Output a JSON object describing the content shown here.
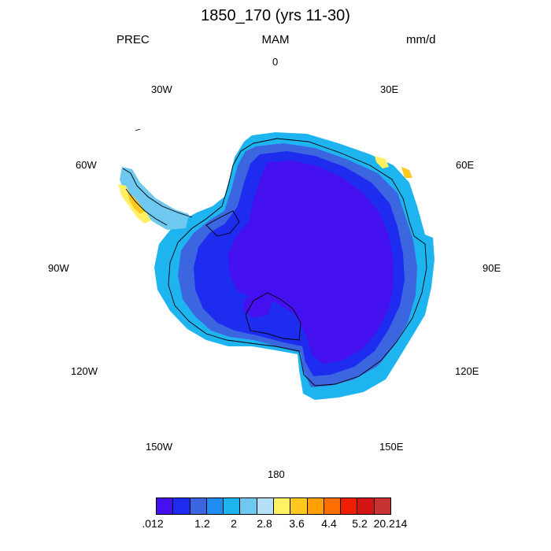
{
  "header": {
    "title": "1850_170 (yrs 11-30)",
    "variable": "PREC",
    "season": "MAM",
    "units": "mm/d"
  },
  "map": {
    "projection": "south-polar-stereographic",
    "region": "Antarctica",
    "longitude_labels": {
      "top": "0",
      "top_left": "30W",
      "top_right": "30E",
      "upper_left": "60W",
      "upper_right": "60E",
      "left": "90W",
      "right": "90E",
      "lower_left": "120W",
      "lower_right": "120E",
      "bottom_left": "150W",
      "bottom_right": "150E",
      "bottom": "180"
    }
  },
  "colorbar": {
    "colors": [
      "#4410f0",
      "#1e2cf0",
      "#3c66e0",
      "#1e8cf0",
      "#1eb4f0",
      "#6ec8f0",
      "#b4e0f8",
      "#fff064",
      "#ffc81e",
      "#ffa000",
      "#ff6e00",
      "#f01e00",
      "#d21414",
      "#c83232"
    ],
    "labels": [
      ".012",
      "1.2",
      "2",
      "2.8",
      "3.6",
      "4.4",
      "5.2",
      "20.214"
    ]
  }
}
